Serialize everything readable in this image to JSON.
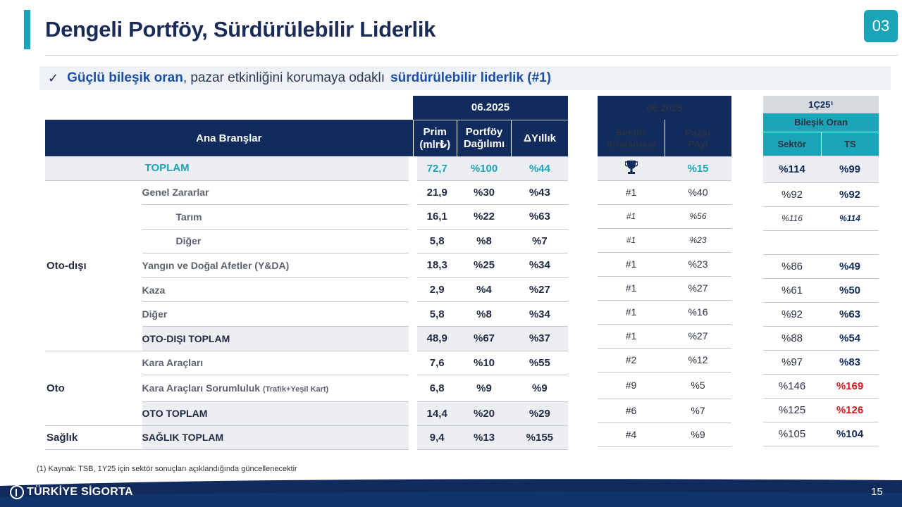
{
  "header": {
    "title": "Dengeli Portföy, Sürdürülebilir Liderlik",
    "section_badge": "03"
  },
  "subtitle": {
    "check": "✓",
    "part1": "Güçlü bileşik oran",
    "part2": ", pazar etkinliğini korumaya odaklı",
    "part3": "sürdürülebilir liderlik (#1)"
  },
  "left_table": {
    "period": "06.2025",
    "col_branch": "Ana Branşlar",
    "col_prim": "Prim\n(mlr₺)",
    "col_prim_l1": "Prim",
    "col_prim_l2": "(mlr₺)",
    "col_dagilim_l1": "Portföy",
    "col_dagilim_l2": "Dağılımı",
    "col_yillik": "ΔYıllık",
    "total": {
      "label": "TOPLAM",
      "prim": "72,7",
      "dagilim": "%100",
      "yillik": "%44"
    },
    "groups": {
      "oto_disi": "Oto-dışı",
      "oto": "Oto",
      "saglik": "Sağlık"
    },
    "rows": [
      {
        "label": "Genel Zararlar",
        "prim": "21,9",
        "dagilim": "%30",
        "yillik": "%43"
      },
      {
        "label": "Tarım",
        "prim": "16,1",
        "dagilim": "%22",
        "yillik": "%63"
      },
      {
        "label": "Diğer",
        "prim": "5,8",
        "dagilim": "%8",
        "yillik": "%7"
      },
      {
        "label": "Yangın ve Doğal Afetler (Y&DA)",
        "prim": "18,3",
        "dagilim": "%25",
        "yillik": "%34"
      },
      {
        "label": "Kaza",
        "prim": "2,9",
        "dagilim": "%4",
        "yillik": "%27"
      },
      {
        "label": "Diğer",
        "prim": "5,8",
        "dagilim": "%8",
        "yillik": "%34"
      },
      {
        "label": "OTO-DIŞI TOPLAM",
        "prim": "48,9",
        "dagilim": "%67",
        "yillik": "%37"
      },
      {
        "label": "Kara Araçları",
        "prim": "7,6",
        "dagilim": "%10",
        "yillik": "%55"
      },
      {
        "label": "Kara Araçları Sorumluluk",
        "label_small": "(Trafik+Yeşil Kart)",
        "prim": "6,8",
        "dagilim": "%9",
        "yillik": "%9"
      },
      {
        "label": "OTO TOPLAM",
        "prim": "14,4",
        "dagilim": "%20",
        "yillik": "%29"
      },
      {
        "label": "SAĞLIK TOPLAM",
        "prim": "9,4",
        "dagilim": "%13",
        "yillik": "%155"
      }
    ]
  },
  "mid_table": {
    "period": "06.2025",
    "col_sira_l1": "Sektör",
    "col_sira_l2": "Sıralaması",
    "col_pay_l1": "Pazar",
    "col_pay_l2": "Payı",
    "total": {
      "icon": "trophy-icon",
      "pay": "%15"
    },
    "rows": [
      {
        "sira": "#1",
        "pay": "%40"
      },
      {
        "sira": "#1",
        "pay": "%56"
      },
      {
        "sira": "#1",
        "pay": "%23"
      },
      {
        "sira": "#1",
        "pay": "%23"
      },
      {
        "sira": "#1",
        "pay": "%27"
      },
      {
        "sira": "#1",
        "pay": "%16"
      },
      {
        "sira": "#1",
        "pay": "%27"
      },
      {
        "sira": "#2",
        "pay": "%12"
      },
      {
        "sira": "#9",
        "pay": "%5"
      },
      {
        "sira": "#6",
        "pay": "%7"
      },
      {
        "sira": "#4",
        "pay": "%9"
      }
    ]
  },
  "right_table": {
    "period": "1Ç25¹",
    "group": "Bileşik Oran",
    "col_sektor": "Sektör",
    "col_ts": "TS",
    "total": {
      "sektor": "%114",
      "ts": "%99"
    },
    "rows": [
      {
        "sektor": "%92",
        "ts": "%92"
      },
      {
        "sektor": "%116",
        "ts": "%114"
      },
      {
        "sektor": "",
        "ts": ""
      },
      {
        "sektor": "%86",
        "ts": "%49"
      },
      {
        "sektor": "%61",
        "ts": "%50"
      },
      {
        "sektor": "%92",
        "ts": "%63"
      },
      {
        "sektor": "%88",
        "ts": "%54"
      },
      {
        "sektor": "%97",
        "ts": "%83"
      },
      {
        "sektor": "%146",
        "ts": "%169"
      },
      {
        "sektor": "%125",
        "ts": "%126"
      },
      {
        "sektor": "%105",
        "ts": "%104"
      }
    ],
    "red_color": "#e0151b"
  },
  "footnote": "(1) Kaynak: TSB, 1Y25 için sektör sonuçları açıklandığında güncellenecektir",
  "footer": {
    "logo": "TÜRKİYE SİGORTA",
    "slide_number": "15"
  },
  "colors": {
    "navy": "#102b5c",
    "teal": "#1aa4b8",
    "red": "#e0151b"
  }
}
